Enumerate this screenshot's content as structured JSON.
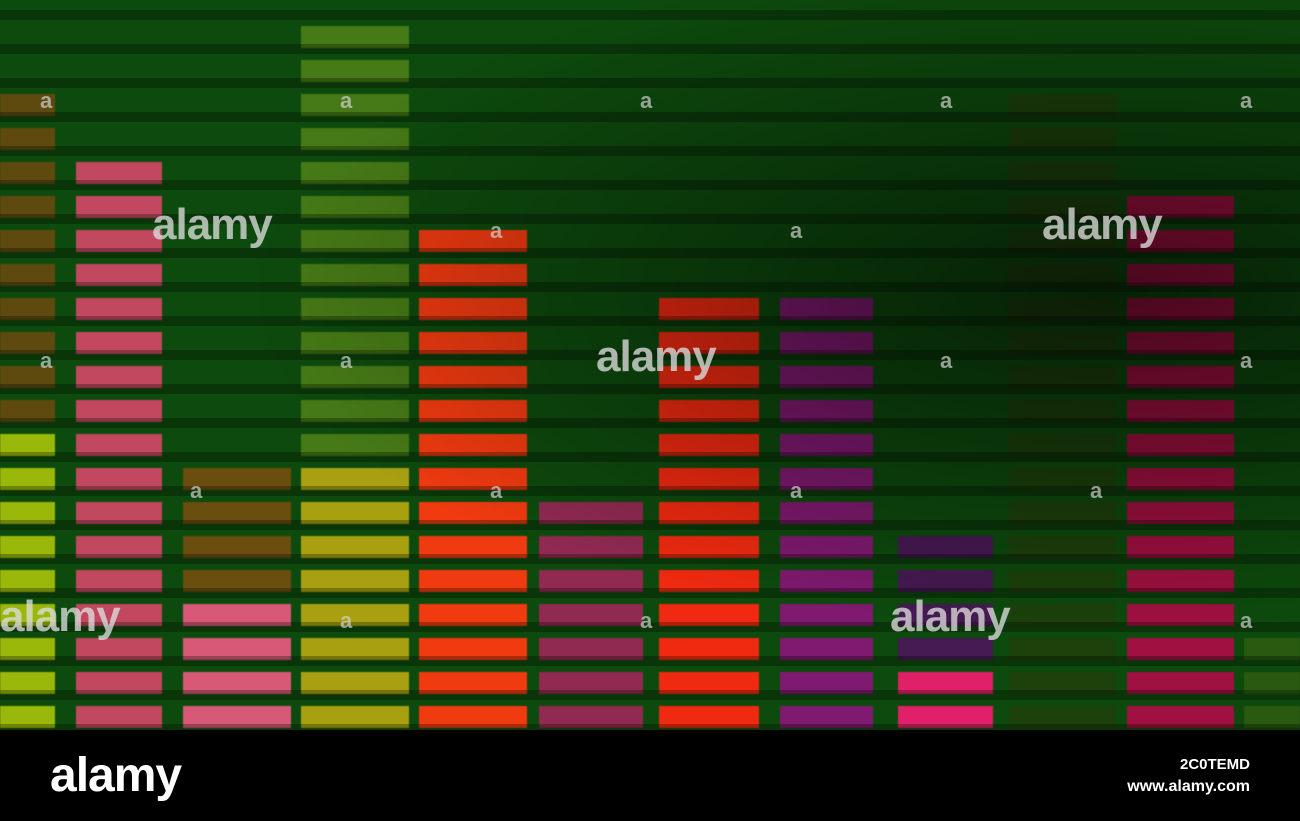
{
  "watermark": {
    "small_mark": "a",
    "big_mark": "alamy"
  },
  "footer": {
    "logo": "alamy",
    "image_id": "2C0TEMD",
    "url": "www.alamy.com"
  },
  "equalizer": {
    "background": "#0d4a0d",
    "bars": [
      {
        "level_top": 94,
        "on": "#9ab80a",
        "dim": "#7a4a10",
        "split": 432
      },
      {
        "level_top": 160,
        "on": "#c24860",
        "dim": "#c24860",
        "split": 0
      },
      {
        "level_top": 467,
        "on": "#d85878",
        "dim": "#8a5010",
        "split": 600
      },
      {
        "level_top": 25,
        "on": "#a8a010",
        "dim": "#5a8a1a",
        "split": 467
      },
      {
        "level_top": 228,
        "on": "#f03a10",
        "dim": "#f03a10",
        "split": 0
      },
      {
        "level_top": 500,
        "on": "#902a50",
        "dim": "#902a50",
        "split": 0
      },
      {
        "level_top": 296,
        "on": "#f02a10",
        "dim": "#f02a10",
        "split": 0
      },
      {
        "level_top": 296,
        "on": "#801a70",
        "dim": "#801a70",
        "split": 0
      },
      {
        "level_top": 534,
        "on": "#e02068",
        "dim": "#5a0a6a",
        "split": 670
      },
      {
        "level_top": 94,
        "on": "#2a3a0a",
        "dim": "#2a3a0a",
        "split": 0
      },
      {
        "level_top": 194,
        "on": "#a01040",
        "dim": "#a01040",
        "split": 0
      },
      {
        "level_top": 636,
        "on": "#2a5a10",
        "dim": "#2a5a10",
        "split": 0
      }
    ]
  }
}
